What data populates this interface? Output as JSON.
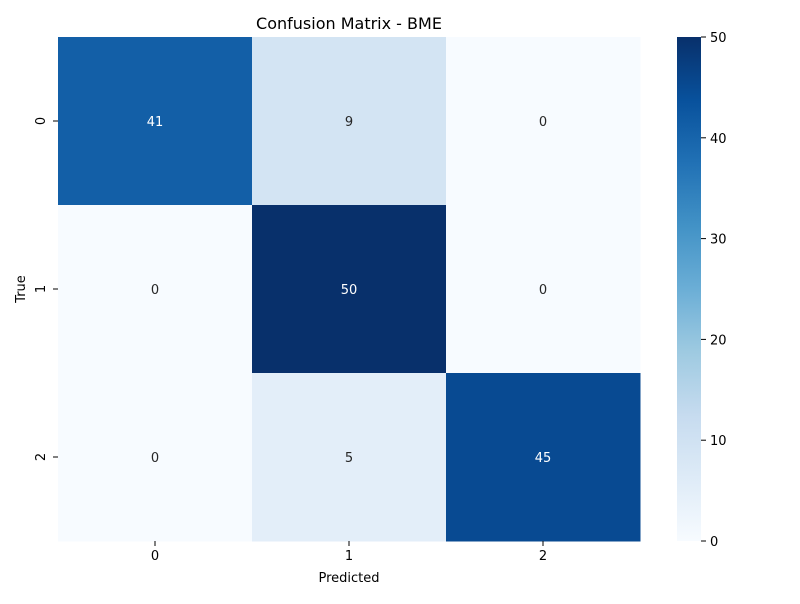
{
  "chart_data": {
    "type": "heatmap",
    "title": "Confusion Matrix - BME",
    "xlabel": "Predicted",
    "ylabel": "True",
    "x_categories": [
      "0",
      "1",
      "2"
    ],
    "y_categories": [
      "0",
      "1",
      "2"
    ],
    "values": [
      [
        41,
        9,
        0
      ],
      [
        0,
        50,
        0
      ],
      [
        0,
        5,
        45
      ]
    ],
    "colormap": "Blues",
    "vmin": 0,
    "vmax": 50,
    "colorbar_ticks": [
      0,
      10,
      20,
      30,
      40,
      50
    ],
    "annotated": true,
    "grid": false
  }
}
